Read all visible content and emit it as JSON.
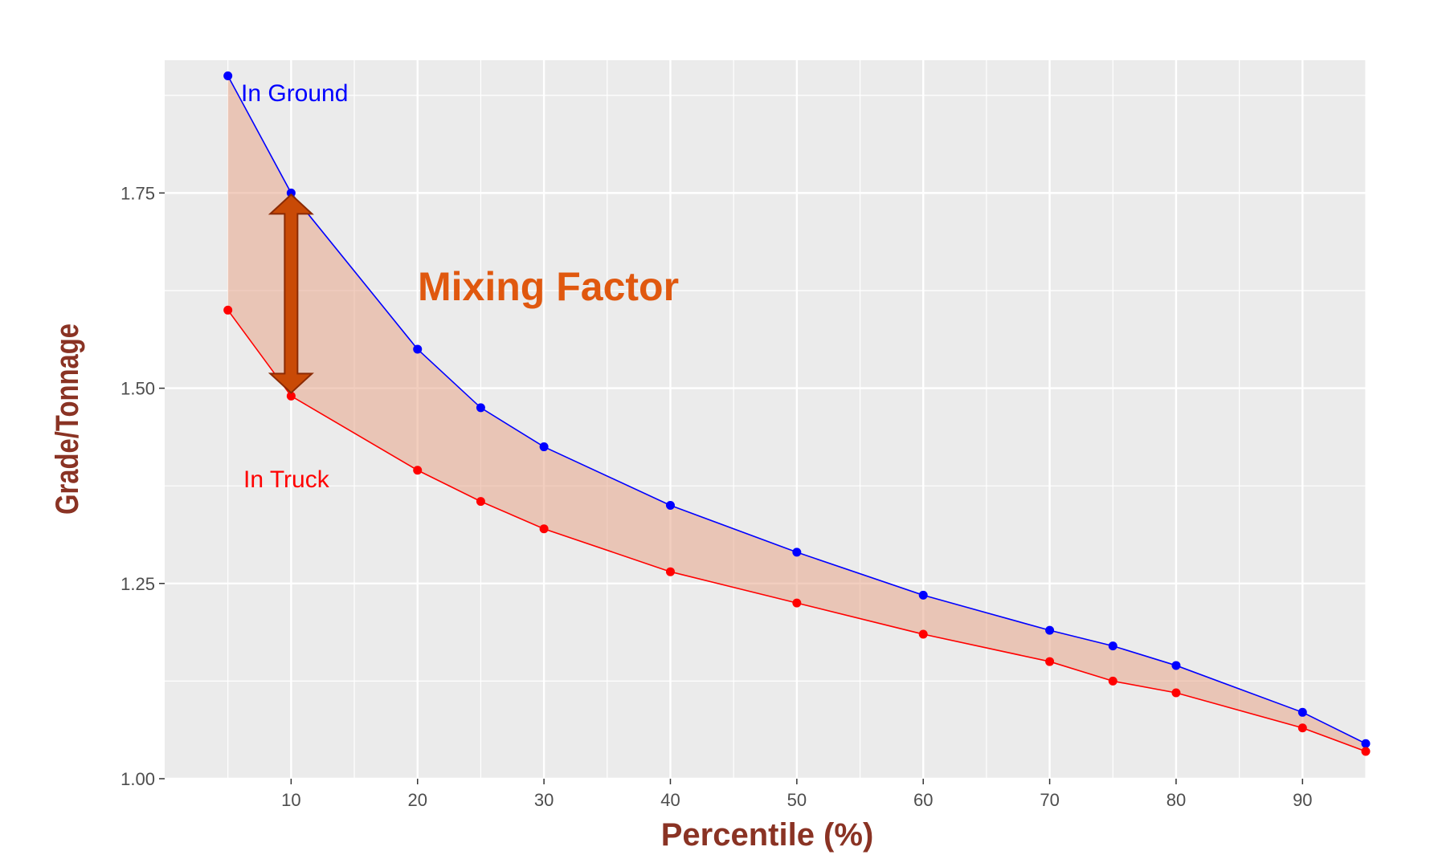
{
  "chart_data": {
    "type": "line",
    "title": "",
    "xlabel": "Percentile (%)",
    "ylabel": "Grade/Tonnage",
    "xlim": [
      0,
      95
    ],
    "ylim": [
      1.0,
      1.92
    ],
    "x_ticks": [
      10,
      20,
      30,
      40,
      50,
      60,
      70,
      80,
      90
    ],
    "y_ticks": [
      1.0,
      1.25,
      1.5,
      1.75
    ],
    "y_tick_labels": [
      "1.00",
      "1.25",
      "1.50",
      "1.75"
    ],
    "grid": true,
    "x": [
      5,
      10,
      20,
      25,
      30,
      40,
      50,
      60,
      70,
      75,
      80,
      90,
      95
    ],
    "series": [
      {
        "name": "In Ground",
        "color": "#0000ff",
        "values": [
          1.9,
          1.75,
          1.55,
          1.475,
          1.425,
          1.35,
          1.29,
          1.235,
          1.19,
          1.17,
          1.145,
          1.085,
          1.045
        ]
      },
      {
        "name": "In Truck",
        "color": "#ff0000",
        "values": [
          1.6,
          1.49,
          1.395,
          1.355,
          1.32,
          1.265,
          1.225,
          1.185,
          1.15,
          1.125,
          1.11,
          1.065,
          1.035
        ]
      }
    ],
    "annotations": [
      {
        "text": "Mixing Factor",
        "color": "#e0580f"
      }
    ],
    "band_color": "#e8a58a"
  }
}
